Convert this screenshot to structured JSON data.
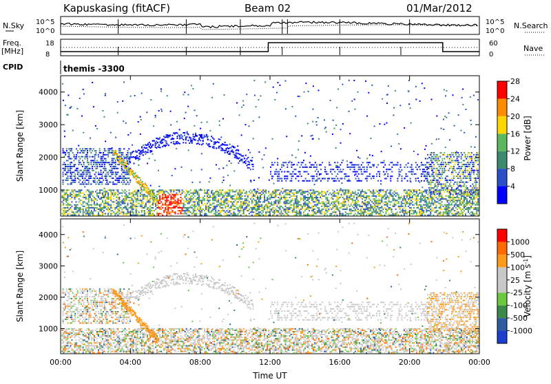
{
  "header": {
    "station": "Kapuskasing (fitACF)",
    "beam": "Beam 02",
    "date": "01/Mar/2012"
  },
  "summary_labels": {
    "nsky": "N.Sky",
    "nsearch": "N.Search",
    "freq_line1": "Freq.",
    "freq_line2": "[MHz]",
    "nave": "Nave",
    "cpid": "CPID",
    "cpid_value": "themis -3300",
    "noise_ticks": [
      "10^5",
      "10^0"
    ],
    "noise_ticks_right": [
      "10^5",
      "10^0"
    ],
    "freq_ticks": [
      "18",
      "8"
    ],
    "nave_ticks": [
      "60",
      "0"
    ]
  },
  "chart_data": [
    {
      "type": "heatmap",
      "panel": "power",
      "ylabel": "Slant Range [km]",
      "yticks": [
        "1000",
        "2000",
        "3000",
        "4000"
      ],
      "ylim": [
        200,
        4500
      ],
      "xlim": [
        0,
        24
      ],
      "colorbar": {
        "label": "Power [dB]",
        "ticks": [
          "4",
          "8",
          "12",
          "16",
          "20",
          "24",
          "28"
        ],
        "colors": [
          "#0000ff",
          "#2a4fc8",
          "#3b8a6e",
          "#5cb85c",
          "#ffd700",
          "#ff8c00",
          "#ff0000"
        ]
      }
    },
    {
      "type": "heatmap",
      "panel": "velocity",
      "ylabel": "Slant Range [km]",
      "yticks": [
        "1000",
        "2000",
        "3000",
        "4000"
      ],
      "ylim": [
        200,
        4500
      ],
      "xlim": [
        0,
        24
      ],
      "xticks": [
        "00:00",
        "04:00",
        "08:00",
        "12:00",
        "16:00",
        "20:00",
        "00:00"
      ],
      "xlabel": "Time UT",
      "colorbar": {
        "label": "Velocity [m s",
        "label_sup": "-1",
        "label_end": "]",
        "ticks": [
          "1000",
          "500",
          "100",
          "25",
          "-25",
          "-100",
          "-500",
          "-1000"
        ],
        "colors": [
          "#1a3fd1",
          "#2f5b9f",
          "#3c8a4a",
          "#6cc83c",
          "#c8c8c8",
          "#c8c8c8",
          "#ff9a1a",
          "#ff6a00",
          "#ff0000"
        ]
      }
    }
  ]
}
